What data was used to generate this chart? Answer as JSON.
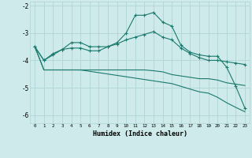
{
  "xlabel": "Humidex (Indice chaleur)",
  "background_color": "#ceeaea",
  "grid_color": "#afd4d4",
  "line_color": "#1a7a6e",
  "x_values": [
    0,
    1,
    2,
    3,
    4,
    5,
    6,
    7,
    8,
    9,
    10,
    11,
    12,
    13,
    14,
    15,
    16,
    17,
    18,
    19,
    20,
    21,
    22,
    23
  ],
  "series1": [
    -3.5,
    -4.0,
    -3.75,
    -3.6,
    -3.35,
    -3.35,
    -3.5,
    -3.5,
    -3.5,
    -3.35,
    -3.0,
    -2.35,
    -2.35,
    -2.25,
    -2.6,
    -2.75,
    -3.45,
    -3.7,
    -3.8,
    -3.85,
    -3.85,
    -4.25,
    -4.95,
    -5.75
  ],
  "series2": [
    -3.5,
    -4.0,
    -3.8,
    -3.6,
    -3.55,
    -3.55,
    -3.65,
    -3.65,
    -3.5,
    -3.4,
    -3.25,
    -3.15,
    -3.05,
    -2.95,
    -3.15,
    -3.25,
    -3.55,
    -3.75,
    -3.9,
    -4.0,
    -4.0,
    -4.05,
    -4.1,
    -4.15
  ],
  "series3": [
    -3.5,
    -4.35,
    -4.35,
    -4.35,
    -4.35,
    -4.35,
    -4.35,
    -4.35,
    -4.35,
    -4.35,
    -4.35,
    -4.35,
    -4.35,
    -4.38,
    -4.42,
    -4.52,
    -4.57,
    -4.62,
    -4.67,
    -4.67,
    -4.72,
    -4.82,
    -4.87,
    -4.92
  ],
  "series4": [
    -3.5,
    -4.35,
    -4.35,
    -4.35,
    -4.35,
    -4.35,
    -4.4,
    -4.45,
    -4.5,
    -4.55,
    -4.6,
    -4.65,
    -4.7,
    -4.75,
    -4.8,
    -4.85,
    -4.95,
    -5.05,
    -5.15,
    -5.2,
    -5.35,
    -5.55,
    -5.72,
    -5.88
  ],
  "ylim": [
    -6.3,
    -1.85
  ],
  "yticks": [
    -6,
    -5,
    -4,
    -3,
    -2
  ]
}
